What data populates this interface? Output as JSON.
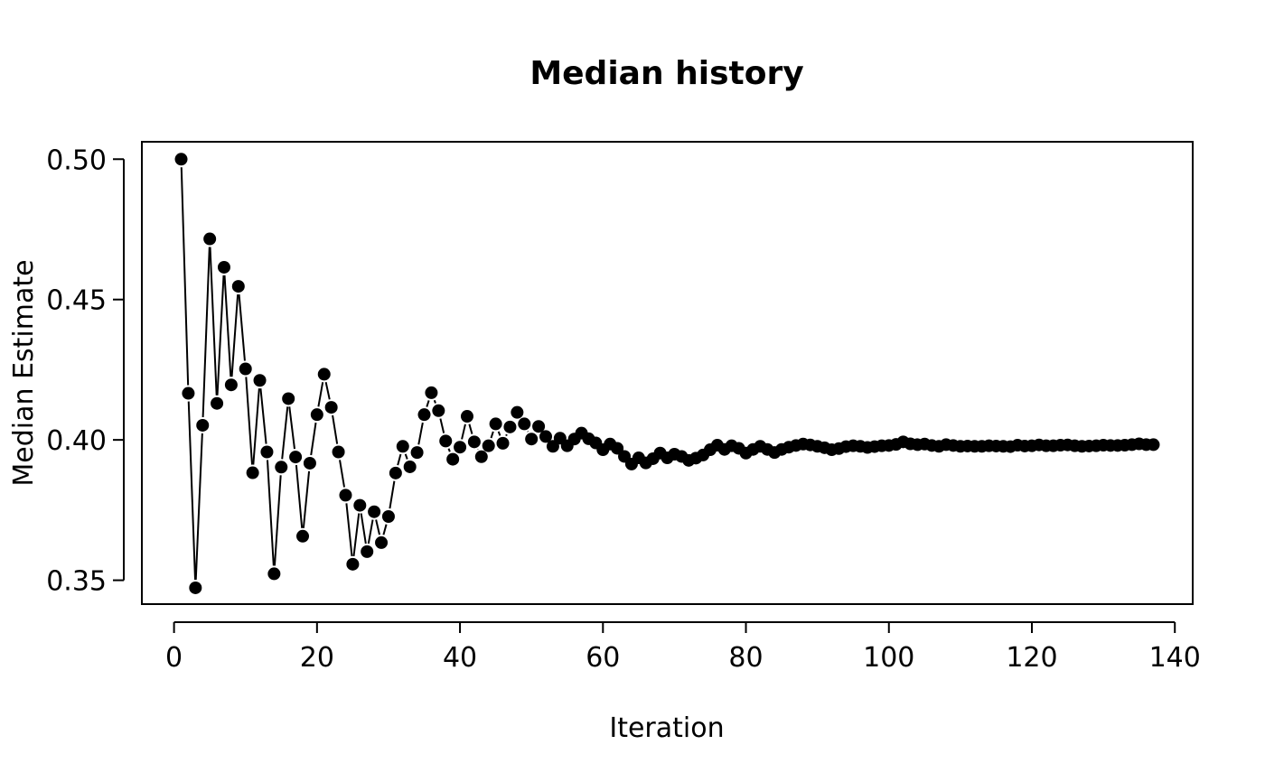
{
  "chart_data": {
    "type": "line",
    "title": "Median history",
    "xlabel": "Iteration",
    "ylabel": "Median Estimate",
    "xlim": [
      -4.5,
      142.5
    ],
    "ylim": [
      0.3415,
      0.5062
    ],
    "xticks": [
      0,
      20,
      40,
      60,
      80,
      100,
      120,
      140
    ],
    "yticks": [
      0.35,
      0.4,
      0.45,
      0.5
    ],
    "xtick_labels": [
      "0",
      "20",
      "40",
      "60",
      "80",
      "100",
      "120",
      "140"
    ],
    "ytick_labels": [
      "0.35",
      "0.40",
      "0.45",
      "0.50"
    ],
    "grid": false,
    "legend": "none",
    "marker": "filled-circle",
    "line_style": "solid",
    "color": "#000000",
    "series": [
      {
        "x": [
          1,
          2,
          3,
          4,
          5,
          6,
          7,
          8,
          9,
          10,
          11,
          12,
          13,
          14,
          15,
          16,
          17,
          18,
          19,
          20,
          21,
          22,
          23,
          24,
          25,
          26,
          27,
          28,
          29,
          30,
          31,
          32,
          33,
          34,
          35,
          36,
          37,
          38,
          39,
          40,
          41,
          42,
          43,
          44,
          45,
          46,
          47,
          48,
          49,
          50,
          51,
          52,
          53,
          54,
          55,
          56,
          57,
          58,
          59,
          60,
          61,
          62,
          63,
          64,
          65,
          66,
          67,
          68,
          69,
          70,
          71,
          72,
          73,
          74,
          75,
          76,
          77,
          78,
          79,
          80,
          81,
          82,
          83,
          84,
          85,
          86,
          87,
          88,
          89,
          90,
          91,
          92,
          93,
          94,
          95,
          96,
          97,
          98,
          99,
          100,
          101,
          102,
          103,
          104,
          105,
          106,
          107,
          108,
          109,
          110,
          111,
          112,
          113,
          114,
          115,
          116,
          117,
          118,
          119,
          120,
          121,
          122,
          123,
          124,
          125,
          126,
          127,
          128,
          129,
          130,
          131,
          132,
          133,
          134,
          135,
          136,
          137
        ],
        "y": [
          0.5,
          0.4166,
          0.3473,
          0.4052,
          0.4716,
          0.413,
          0.4615,
          0.4196,
          0.4547,
          0.4253,
          0.3883,
          0.4212,
          0.3957,
          0.3523,
          0.3903,
          0.4147,
          0.3939,
          0.3657,
          0.3917,
          0.409,
          0.4234,
          0.4116,
          0.3957,
          0.3803,
          0.3557,
          0.3767,
          0.3602,
          0.3744,
          0.3634,
          0.3727,
          0.3882,
          0.3977,
          0.3904,
          0.3955,
          0.409,
          0.4168,
          0.4104,
          0.3996,
          0.3931,
          0.3974,
          0.4084,
          0.3993,
          0.394,
          0.3979,
          0.4057,
          0.3988,
          0.4046,
          0.4098,
          0.4057,
          0.4003,
          0.4048,
          0.4012,
          0.3977,
          0.4006,
          0.3979,
          0.4003,
          0.4024,
          0.4004,
          0.3989,
          0.3965,
          0.3985,
          0.397,
          0.3941,
          0.3914,
          0.3936,
          0.3918,
          0.3933,
          0.3953,
          0.3936,
          0.3949,
          0.3941,
          0.3927,
          0.3935,
          0.3946,
          0.3965,
          0.3981,
          0.3966,
          0.3979,
          0.397,
          0.3953,
          0.3966,
          0.3977,
          0.3966,
          0.3955,
          0.3966,
          0.3974,
          0.398,
          0.3985,
          0.3982,
          0.3977,
          0.3972,
          0.3965,
          0.3969,
          0.3976,
          0.3979,
          0.3977,
          0.3973,
          0.3976,
          0.3979,
          0.398,
          0.3984,
          0.3993,
          0.3986,
          0.3983,
          0.3985,
          0.398,
          0.3977,
          0.3983,
          0.398,
          0.3977,
          0.3978,
          0.3977,
          0.3977,
          0.3979,
          0.3978,
          0.3977,
          0.3976,
          0.3981,
          0.3978,
          0.3979,
          0.3982,
          0.3979,
          0.3979,
          0.3981,
          0.3982,
          0.3979,
          0.3977,
          0.3978,
          0.3979,
          0.3981,
          0.398,
          0.398,
          0.3981,
          0.3983,
          0.3986,
          0.3983,
          0.3983
        ]
      }
    ]
  }
}
